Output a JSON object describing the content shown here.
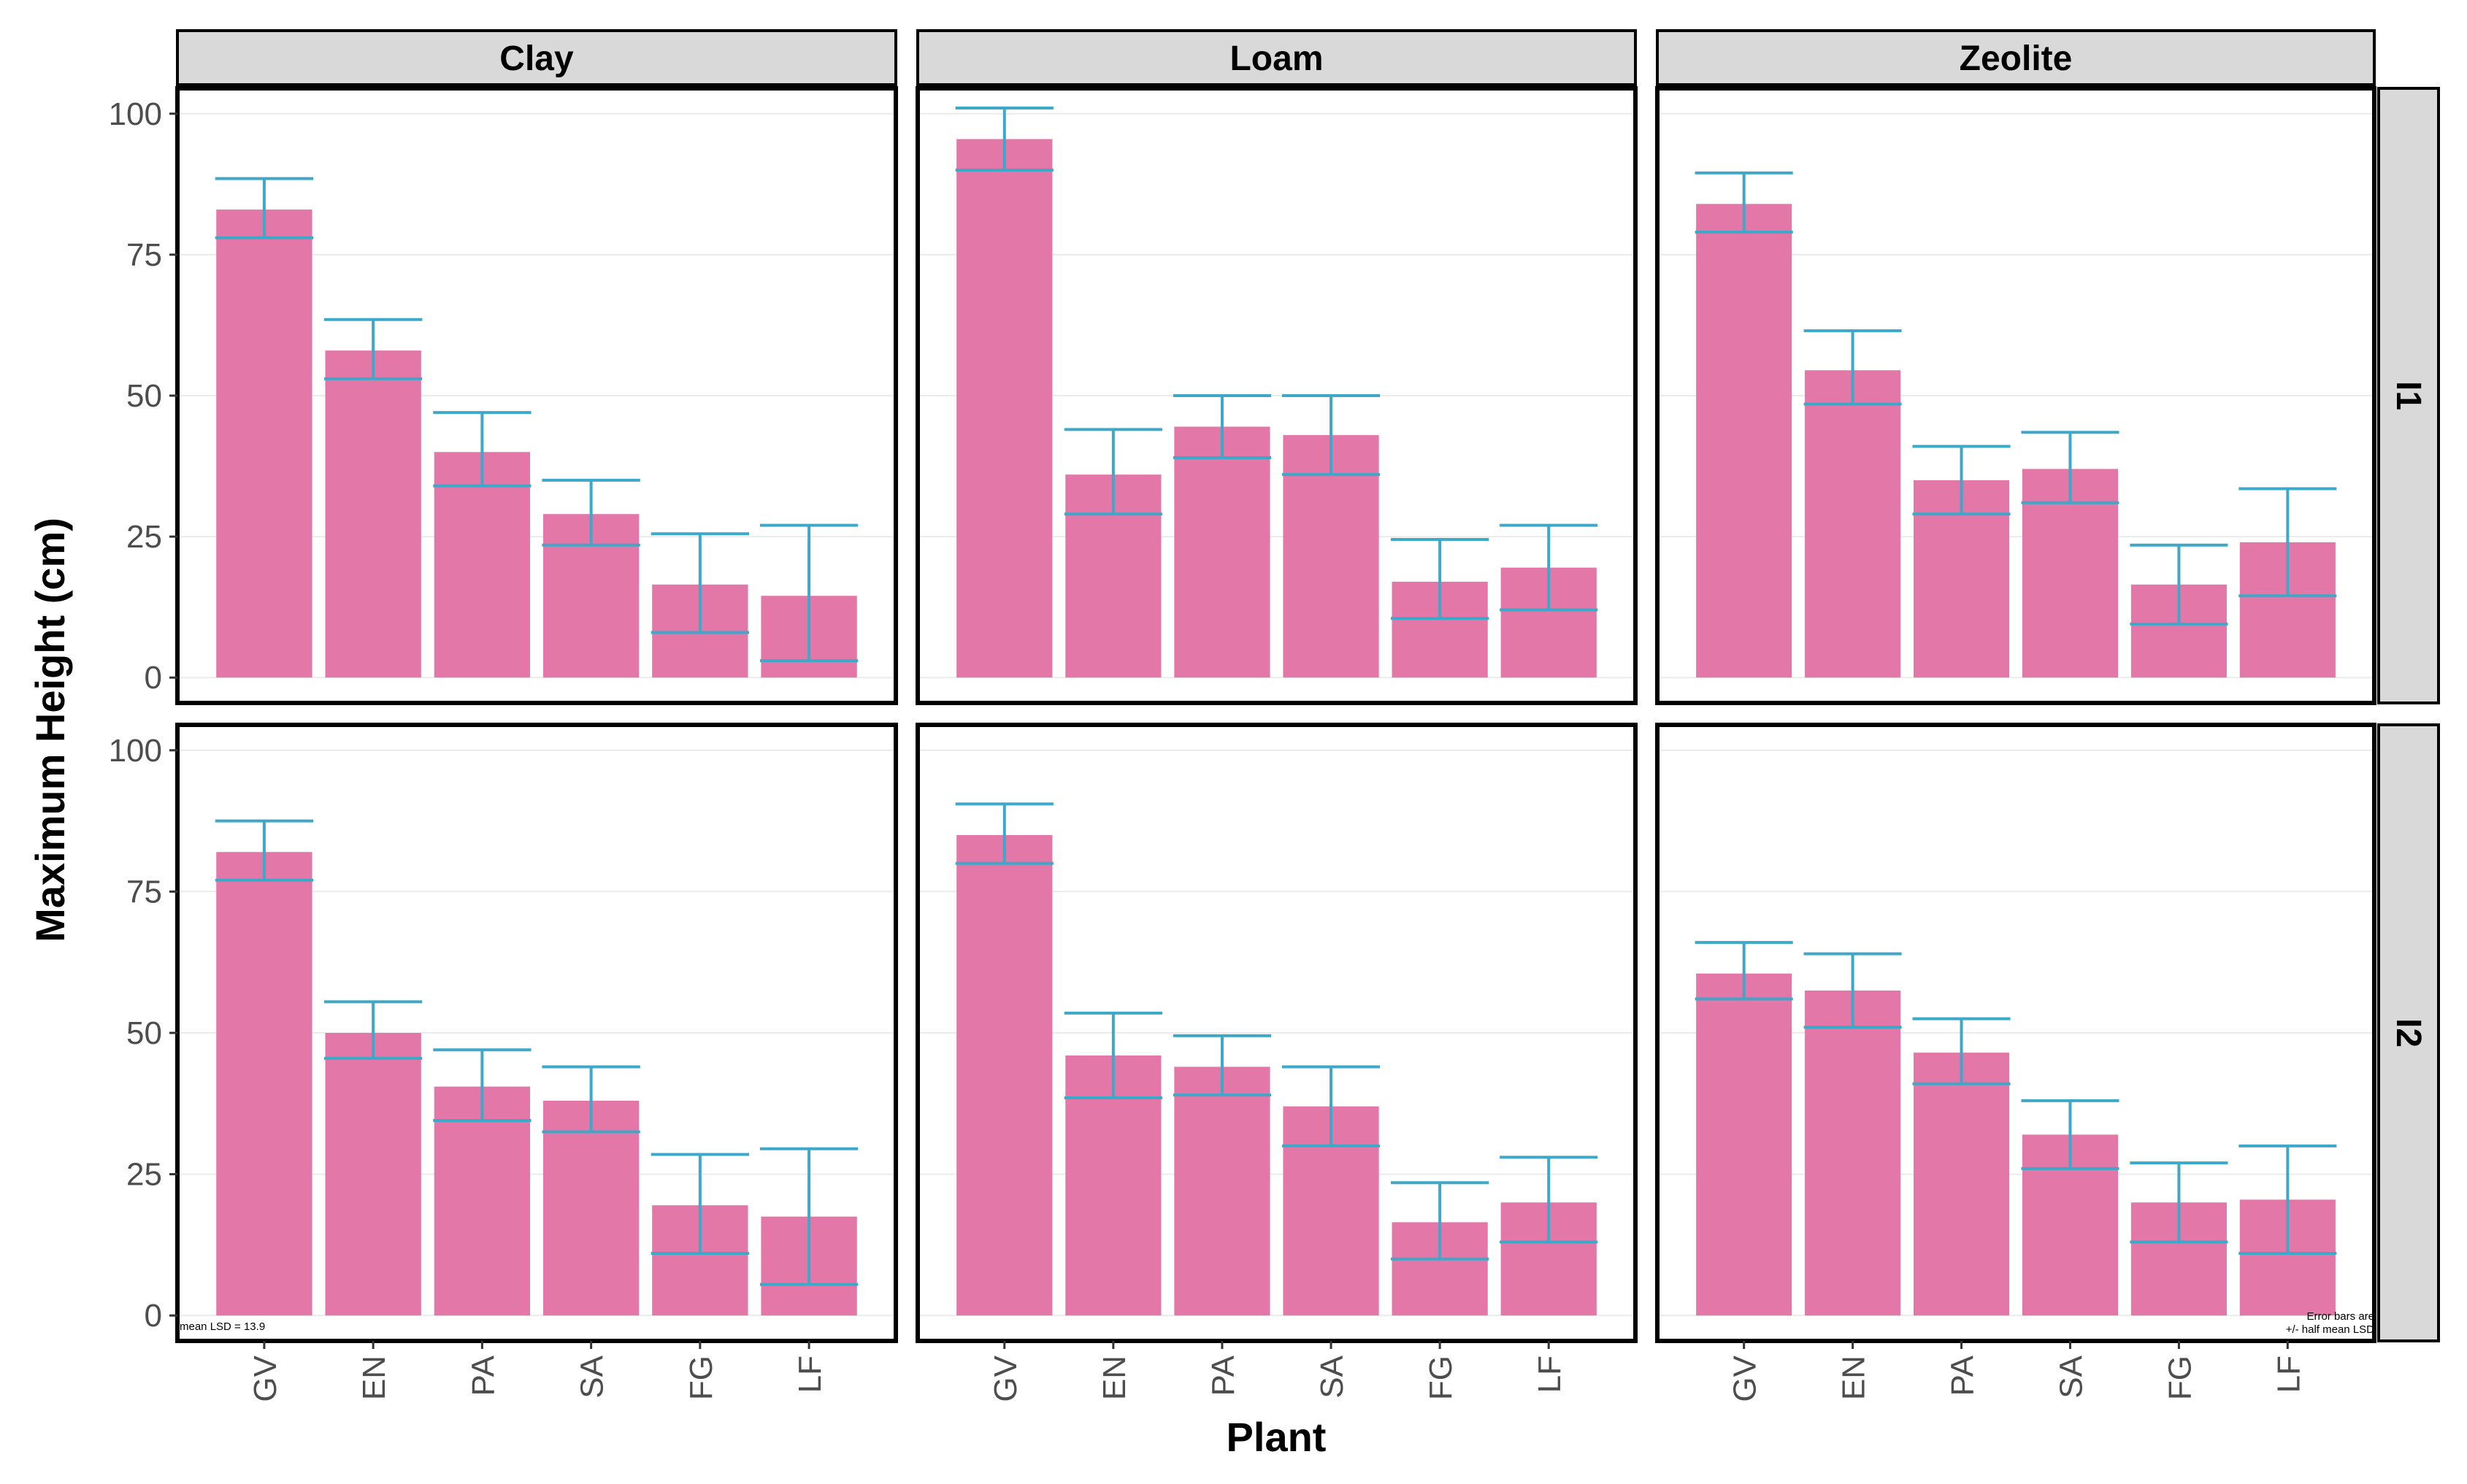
{
  "chart_data": {
    "type": "bar",
    "layout": "facet-grid",
    "xlabel": "Plant",
    "ylabel": "Maximum Height (cm)",
    "categories": [
      "GV",
      "EN",
      "PA",
      "SA",
      "FG",
      "LF"
    ],
    "col_facets": [
      "Clay",
      "Loam",
      "Zeolite"
    ],
    "row_facets": [
      "I1",
      "I2"
    ],
    "ylim": [
      0,
      100
    ],
    "yticks": [
      0,
      25,
      50,
      75,
      100
    ],
    "error_bar": "+/- half mean LSD",
    "colors": {
      "bar": "#e377a7",
      "errorbar": "#3fa7c8",
      "strip": "#d9d9d9"
    },
    "annotations": {
      "lsd_note": "mean LSD =  13.9",
      "error_note_line1": "Error bars are",
      "error_note_line2": "+/- half mean LSD"
    },
    "panels": [
      {
        "row": "I1",
        "col": "Clay",
        "values": [
          83,
          58,
          40,
          29,
          16.5,
          14.5
        ],
        "err_low": [
          78,
          53,
          34,
          23.5,
          8,
          3
        ],
        "err_high": [
          88.5,
          63.5,
          47,
          35,
          25.5,
          27
        ]
      },
      {
        "row": "I1",
        "col": "Loam",
        "values": [
          95.5,
          36,
          44.5,
          43,
          17,
          19.5
        ],
        "err_low": [
          90,
          29,
          39,
          36,
          10.5,
          12
        ],
        "err_high": [
          101,
          44,
          50,
          50,
          24.5,
          27
        ]
      },
      {
        "row": "I1",
        "col": "Zeolite",
        "values": [
          84,
          54.5,
          35,
          37,
          16.5,
          24
        ],
        "err_low": [
          79,
          48.5,
          29,
          31,
          9.5,
          14.5
        ],
        "err_high": [
          89.5,
          61.5,
          41,
          43.5,
          23.5,
          33.5
        ]
      },
      {
        "row": "I2",
        "col": "Clay",
        "values": [
          82,
          50,
          40.5,
          38,
          19.5,
          17.5
        ],
        "err_low": [
          77,
          45.5,
          34.5,
          32.5,
          11,
          5.5
        ],
        "err_high": [
          87.5,
          55.5,
          47,
          44,
          28.5,
          29.5
        ]
      },
      {
        "row": "I2",
        "col": "Loam",
        "values": [
          85,
          46,
          44,
          37,
          16.5,
          20
        ],
        "err_low": [
          80,
          38.5,
          39,
          30,
          10,
          13
        ],
        "err_high": [
          90.5,
          53.5,
          49.5,
          44,
          23.5,
          28
        ]
      },
      {
        "row": "I2",
        "col": "Zeolite",
        "values": [
          60.5,
          57.5,
          46.5,
          32,
          20,
          20.5
        ],
        "err_low": [
          56,
          51,
          41,
          26,
          13,
          11
        ],
        "err_high": [
          66,
          64,
          52.5,
          38,
          27,
          30
        ]
      }
    ]
  }
}
